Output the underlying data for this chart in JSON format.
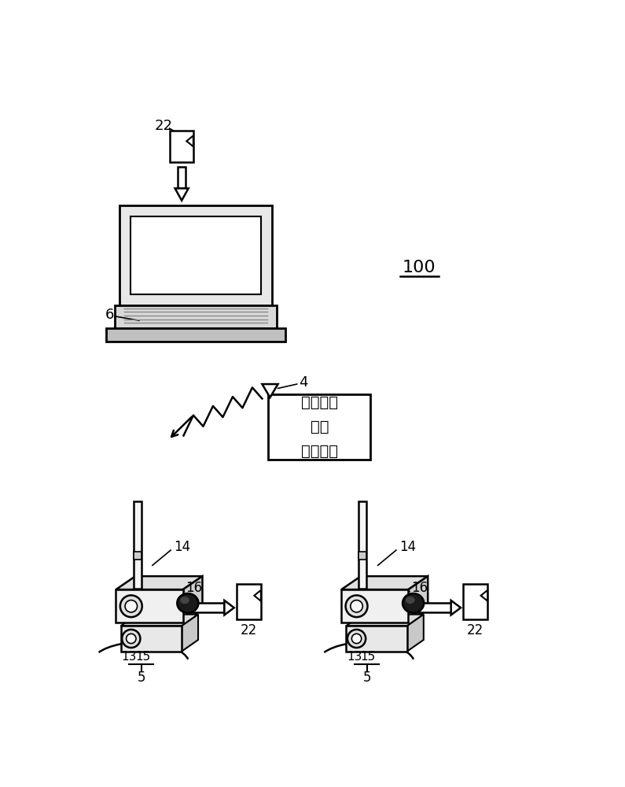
{
  "bg_color": "#ffffff",
  "line_color": "#000000",
  "box_text": "测定开始\n指令\n发送装置"
}
